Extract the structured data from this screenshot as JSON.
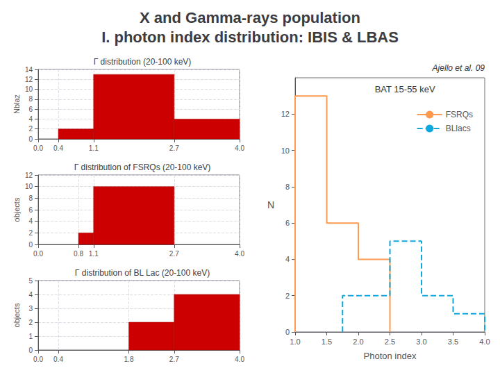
{
  "title": "X and Gamma-rays population\nI. photon index distribution: IBIS & LBAS",
  "chart_data": [
    {
      "type": "histogram",
      "title": "Γ distribution (20-100 keV)",
      "ylabel": "Nblaz",
      "bins": [
        0.0,
        0.4,
        1.1,
        2.7,
        4.0
      ],
      "values": [
        0,
        2,
        13,
        4
      ],
      "color": "#cc0000",
      "xlim": [
        0,
        4
      ],
      "xticks": [
        {
          "value": 0,
          "label": "0.0"
        },
        0.4,
        1.1,
        2.7,
        {
          "value": 4,
          "label": "4.0"
        }
      ],
      "ylim": [
        0,
        14
      ],
      "yticks": [
        0,
        2,
        4,
        6,
        8,
        10,
        12,
        14
      ],
      "grid": true
    },
    {
      "type": "histogram",
      "title": "Γ distribution of FSRQs (20-100 keV)",
      "ylabel": "objects",
      "bins": [
        0.0,
        0.8,
        1.1,
        2.7,
        4.0
      ],
      "values": [
        0,
        2,
        10,
        0
      ],
      "color": "#cc0000",
      "xlim": [
        0,
        4
      ],
      "xticks": [
        {
          "value": 0,
          "label": "0.0"
        },
        0.8,
        1.1,
        2.7,
        {
          "value": 4,
          "label": "4.0"
        }
      ],
      "ylim": [
        0,
        12
      ],
      "yticks": [
        0,
        2,
        4,
        6,
        8,
        10,
        12
      ],
      "grid": true
    },
    {
      "type": "histogram",
      "title": "Γ distribution of BL Lac (20-100 keV)",
      "ylabel": "objects",
      "bins": [
        0.0,
        0.4,
        1.8,
        2.7,
        4.0
      ],
      "values": [
        0,
        0,
        2,
        4
      ],
      "color": "#cc0000",
      "xlim": [
        0,
        4
      ],
      "xticks": [
        {
          "value": 0,
          "label": "0.0"
        },
        0.4,
        1.8,
        2.7,
        {
          "value": 4,
          "label": "4.0"
        }
      ],
      "ylim": [
        0,
        5
      ],
      "yticks": [
        0,
        1,
        2,
        3,
        4,
        5
      ],
      "grid": true
    },
    {
      "type": "step",
      "xlabel": "Photon index",
      "ylabel": "N",
      "series": [
        {
          "name": "FSRQs",
          "line_style": "solid",
          "bins": [
            1.0,
            1.5,
            2.0,
            2.5
          ],
          "values": [
            13,
            6,
            4
          ]
        },
        {
          "name": "BLlacs",
          "line_style": "dashed",
          "bins": [
            1.75,
            2.0,
            2.5,
            3.0,
            3.5,
            4.0
          ],
          "values": [
            2,
            2,
            5,
            2,
            1
          ]
        }
      ],
      "xlim": [
        1,
        4
      ],
      "xticks": [
        {
          "value": 1,
          "label": "1.0"
        },
        1.5,
        {
          "value": 2,
          "label": "2.0"
        },
        2.5,
        {
          "value": 3,
          "label": "3.0"
        },
        3.5,
        {
          "value": 4,
          "label": "4.0"
        }
      ],
      "ylim": [
        0,
        14
      ],
      "yticks": [
        0,
        2,
        4,
        6,
        8,
        10,
        12
      ],
      "grid": false,
      "legend": "upper right",
      "annotations": [
        "Ajello et al. 09",
        "BAT 15-55 keV"
      ]
    }
  ]
}
